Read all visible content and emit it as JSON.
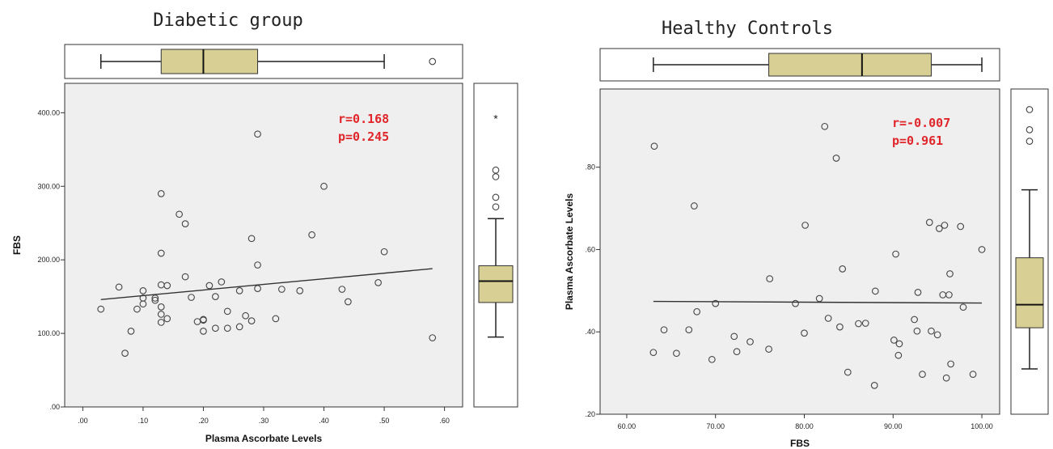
{
  "chart_data": [
    {
      "type": "scatter",
      "title": "Diabetic group",
      "xlabel": "Plasma Ascorbate Levels",
      "ylabel": "FBS",
      "xlim": [
        -0.03,
        0.63
      ],
      "ylim": [
        0,
        440
      ],
      "xticks": [
        0,
        0.1,
        0.2,
        0.3,
        0.4,
        0.5,
        0.6
      ],
      "xtick_labels": [
        ".00",
        ".10",
        ".20",
        ".30",
        ".40",
        ".50",
        ".60"
      ],
      "yticks": [
        0,
        100,
        200,
        300,
        400
      ],
      "ytick_labels": [
        ".00",
        "100.00",
        "200.00",
        "300.00",
        "400.00"
      ],
      "annotation": {
        "r": "r=0.168",
        "p": "p=0.245",
        "color": "#e0262b"
      },
      "fit_line": {
        "x": [
          0.03,
          0.58
        ],
        "y": [
          146,
          188
        ]
      },
      "points": [
        [
          0.03,
          133
        ],
        [
          0.06,
          163
        ],
        [
          0.07,
          73
        ],
        [
          0.08,
          103
        ],
        [
          0.09,
          133
        ],
        [
          0.1,
          140
        ],
        [
          0.1,
          148
        ],
        [
          0.1,
          158
        ],
        [
          0.12,
          145
        ],
        [
          0.12,
          148
        ],
        [
          0.13,
          115
        ],
        [
          0.13,
          126
        ],
        [
          0.13,
          136
        ],
        [
          0.13,
          166
        ],
        [
          0.13,
          209
        ],
        [
          0.13,
          290
        ],
        [
          0.14,
          120
        ],
        [
          0.14,
          165
        ],
        [
          0.16,
          262
        ],
        [
          0.17,
          177
        ],
        [
          0.17,
          249
        ],
        [
          0.18,
          149
        ],
        [
          0.19,
          116
        ],
        [
          0.2,
          103
        ],
        [
          0.2,
          118
        ],
        [
          0.2,
          119
        ],
        [
          0.21,
          165
        ],
        [
          0.22,
          107
        ],
        [
          0.22,
          150
        ],
        [
          0.23,
          170
        ],
        [
          0.24,
          107
        ],
        [
          0.24,
          130
        ],
        [
          0.26,
          109
        ],
        [
          0.26,
          158
        ],
        [
          0.27,
          124
        ],
        [
          0.28,
          117
        ],
        [
          0.28,
          229
        ],
        [
          0.29,
          161
        ],
        [
          0.29,
          193
        ],
        [
          0.29,
          371
        ],
        [
          0.32,
          120
        ],
        [
          0.33,
          160
        ],
        [
          0.36,
          158
        ],
        [
          0.38,
          234
        ],
        [
          0.4,
          300
        ],
        [
          0.43,
          160
        ],
        [
          0.44,
          143
        ],
        [
          0.49,
          169
        ],
        [
          0.5,
          211
        ],
        [
          0.58,
          94
        ]
      ],
      "x_boxplot": {
        "whisker_low": 0.03,
        "q1": 0.13,
        "median": 0.2,
        "q3": 0.29,
        "whisker_high": 0.5,
        "outliers": [
          0.58
        ]
      },
      "y_boxplot": {
        "whisker_low": 95,
        "q1": 142,
        "median": 171,
        "q3": 192,
        "whisker_high": 256,
        "outliers": [
          272,
          285,
          313,
          322
        ],
        "extremes": [
          392
        ]
      },
      "box_color": "#d8cf94"
    },
    {
      "type": "scatter",
      "title": "Healthy Controls",
      "xlabel": "FBS",
      "ylabel": "Plasma Ascorbate Levels",
      "xlim": [
        57,
        102
      ],
      "ylim": [
        0.2,
        0.99
      ],
      "xticks": [
        60,
        70,
        80,
        90,
        100
      ],
      "xtick_labels": [
        "60.00",
        "70.00",
        "80.00",
        "90.00",
        "100.00"
      ],
      "yticks": [
        0.2,
        0.4,
        0.6,
        0.8
      ],
      "ytick_labels": [
        ".20",
        ".40",
        ".60",
        ".80"
      ],
      "annotation": {
        "r": "r=-0.007",
        "p": "p=0.961",
        "color": "#e0262b"
      },
      "fit_line": {
        "x": [
          63,
          100
        ],
        "y": [
          0.474,
          0.47
        ]
      },
      "points": [
        [
          63,
          0.35
        ],
        [
          63.1,
          0.851
        ],
        [
          64.2,
          0.405
        ],
        [
          65.6,
          0.348
        ],
        [
          67,
          0.405
        ],
        [
          67.6,
          0.706
        ],
        [
          67.9,
          0.449
        ],
        [
          69.6,
          0.333
        ],
        [
          70,
          0.469
        ],
        [
          72.1,
          0.389
        ],
        [
          72.4,
          0.352
        ],
        [
          73.9,
          0.376
        ],
        [
          76,
          0.358
        ],
        [
          76.1,
          0.529
        ],
        [
          79,
          0.469
        ],
        [
          80,
          0.397
        ],
        [
          80.1,
          0.659
        ],
        [
          81.7,
          0.481
        ],
        [
          82.3,
          0.899
        ],
        [
          82.7,
          0.433
        ],
        [
          83.6,
          0.822
        ],
        [
          84,
          0.412
        ],
        [
          84.3,
          0.553
        ],
        [
          84.9,
          0.302
        ],
        [
          86.1,
          0.42
        ],
        [
          86.9,
          0.421
        ],
        [
          87.9,
          0.27
        ],
        [
          88,
          0.499
        ],
        [
          90.1,
          0.38
        ],
        [
          90.3,
          0.589
        ],
        [
          90.6,
          0.343
        ],
        [
          90.7,
          0.371
        ],
        [
          92.4,
          0.43
        ],
        [
          92.7,
          0.402
        ],
        [
          92.8,
          0.496
        ],
        [
          93.3,
          0.297
        ],
        [
          94.1,
          0.666
        ],
        [
          94.3,
          0.402
        ],
        [
          95,
          0.393
        ],
        [
          95.2,
          0.651
        ],
        [
          95.6,
          0.49
        ],
        [
          95.8,
          0.659
        ],
        [
          96,
          0.288
        ],
        [
          96.3,
          0.49
        ],
        [
          96.4,
          0.541
        ],
        [
          96.5,
          0.322
        ],
        [
          97.6,
          0.656
        ],
        [
          97.9,
          0.46
        ],
        [
          99,
          0.297
        ],
        [
          100,
          0.6
        ]
      ],
      "x_boxplot": {
        "whisker_low": 63,
        "q1": 76,
        "median": 86.5,
        "q3": 94.3,
        "whisker_high": 100,
        "outliers": []
      },
      "y_boxplot": {
        "whisker_low": 0.31,
        "q1": 0.41,
        "median": 0.466,
        "q3": 0.58,
        "whisker_high": 0.745,
        "outliers": [
          0.863,
          0.891,
          0.94
        ],
        "extremes": []
      },
      "box_color": "#d8cf94"
    }
  ]
}
